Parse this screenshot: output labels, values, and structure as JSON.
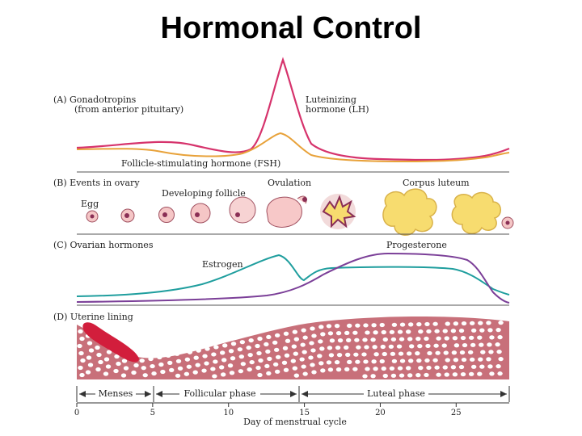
{
  "title": "Hormonal Control",
  "colors": {
    "lh": "#d6336c",
    "fsh": "#e8a23a",
    "estrogen": "#1f9e9e",
    "progesterone": "#7b3f98",
    "uterine": "#c8707a",
    "menses_blood": "#d21e3c",
    "corpus_luteum": "#f7dc6f",
    "follicle": "#f5c6c6"
  },
  "panelA": {
    "label": "(A) Gonadotropins",
    "sublabel": "(from anterior pituitary)",
    "lh_label_1": "Luteinizing",
    "lh_label_2": "hormone (LH)",
    "fsh_label": "Follicle-stimulating hormone (FSH)"
  },
  "panelB": {
    "label": "(B) Events in ovary",
    "egg": "Egg",
    "developing": "Developing follicle",
    "ovulation": "Ovulation",
    "corpus": "Corpus luteum"
  },
  "panelC": {
    "label": "(C) Ovarian hormones",
    "estrogen": "Estrogen",
    "progesterone": "Progesterone"
  },
  "panelD": {
    "label": "(D) Uterine lining"
  },
  "phases": {
    "menses": "Menses",
    "follicular": "Follicular phase",
    "luteal": "Luteal phase"
  },
  "axis": {
    "ticks": [
      "0",
      "5",
      "10",
      "15",
      "20",
      "25"
    ],
    "label": "Day of menstrual cycle"
  }
}
